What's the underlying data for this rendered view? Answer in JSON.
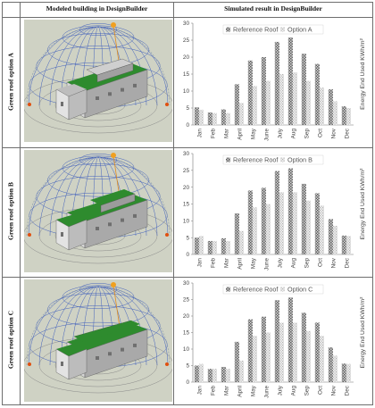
{
  "table": {
    "col1_header": "Modeled building in DesignBuilder",
    "col2_header": "Simulated result in DesignBuilder",
    "rows": [
      {
        "label": "Green roof option A",
        "roof_style": "partial"
      },
      {
        "label": "Green roof option B",
        "roof_style": "full"
      },
      {
        "label": "Green roof option C",
        "roof_style": "full-ridge"
      }
    ]
  },
  "colors": {
    "sky": "#cfd2c4",
    "grass": "#2e8b2e",
    "reference_bar": "#9a9a9a",
    "option_bar": "#d4d4d4",
    "axis": "#777777"
  },
  "chart_data": [
    {
      "type": "bar",
      "categories": [
        "Jan",
        "Feb",
        "Mar",
        "April",
        "May",
        "June",
        "July",
        "Aug",
        "Sep",
        "Oct",
        "Nov",
        "Dec"
      ],
      "series": [
        {
          "name": "Reference Roof",
          "values": [
            5.2,
            3.7,
            4.6,
            12.0,
            19.0,
            20.0,
            24.5,
            25.8,
            21.0,
            18.0,
            10.5,
            5.5
          ]
        },
        {
          "name": "Option A",
          "values": [
            4.5,
            3.5,
            3.5,
            6.5,
            11.5,
            13.0,
            15.0,
            15.5,
            13.0,
            11.0,
            7.0,
            5.0
          ]
        }
      ],
      "ylabel": "Energy End Used KWh/m²",
      "ylim": [
        0,
        30
      ],
      "yticks": [
        0,
        5,
        10,
        15,
        20,
        25,
        30
      ],
      "legend": "top-center",
      "grid": false
    },
    {
      "type": "bar",
      "categories": [
        "Jan",
        "Feb",
        "Mar",
        "April",
        "May",
        "June",
        "July",
        "Aug",
        "Sep",
        "Oct",
        "Nov",
        "Dec"
      ],
      "series": [
        {
          "name": "Reference Roof",
          "values": [
            5.0,
            4.0,
            4.8,
            12.2,
            19.0,
            19.8,
            24.8,
            25.6,
            21.0,
            18.2,
            10.5,
            5.6
          ]
        },
        {
          "name": "Option B",
          "values": [
            5.5,
            4.0,
            4.0,
            7.0,
            14.0,
            15.0,
            18.5,
            18.5,
            16.0,
            14.5,
            8.5,
            5.5
          ]
        }
      ],
      "ylabel": "Energy End Used KWh/m²",
      "ylim": [
        0,
        30
      ],
      "yticks": [
        0,
        5,
        10,
        15,
        20,
        25,
        30
      ],
      "legend": "top-center",
      "grid": false
    },
    {
      "type": "bar",
      "categories": [
        "Jan",
        "Feb",
        "Mar",
        "April",
        "May",
        "June",
        "July",
        "Aug",
        "Sep",
        "Oct",
        "Nov",
        "Dec"
      ],
      "series": [
        {
          "name": "Reference Roof",
          "values": [
            5.0,
            4.0,
            4.6,
            12.2,
            19.0,
            19.8,
            24.8,
            25.6,
            21.0,
            18.0,
            10.5,
            5.6
          ]
        },
        {
          "name": "Option C",
          "values": [
            5.5,
            4.0,
            4.0,
            6.5,
            14.0,
            15.0,
            18.0,
            18.0,
            15.5,
            14.0,
            8.0,
            5.5
          ]
        }
      ],
      "ylabel": "Energy End Used KWh/m²",
      "ylim": [
        0,
        30
      ],
      "yticks": [
        0,
        5,
        10,
        15,
        20,
        25,
        30
      ],
      "legend": "top-center",
      "grid": false
    }
  ]
}
